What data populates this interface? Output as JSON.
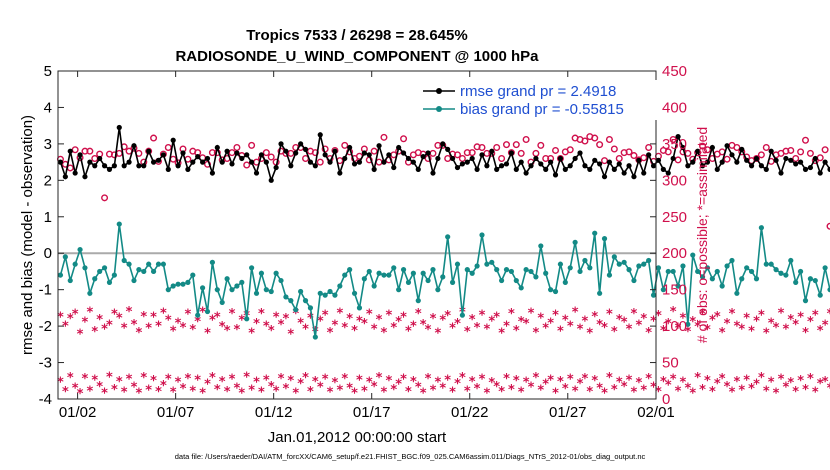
{
  "chart_data": {
    "type": "line",
    "title": "Tropics 7533 / 26298 = 28.645%",
    "subtitle": "RADIOSONDE_U_WIND_COMPONENT @ 1000 hPa",
    "xlabel": "Jan.01,2012 00:00:00 start",
    "ylabel": "rmse and bias (model - observation)",
    "y2label": "# of obs: o=possible; *=assimilated",
    "xlim": [
      0.5,
      31.0
    ],
    "ylim": [
      -4,
      5
    ],
    "y2lim": [
      0,
      450
    ],
    "xticks": [
      {
        "value": 1.5,
        "label": "01/02"
      },
      {
        "value": 6.5,
        "label": "01/07"
      },
      {
        "value": 11.5,
        "label": "01/12"
      },
      {
        "value": 16.5,
        "label": "01/17"
      },
      {
        "value": 21.5,
        "label": "01/22"
      },
      {
        "value": 26.5,
        "label": "01/27"
      },
      {
        "value": 31.0,
        "label": "02/01"
      }
    ],
    "yticks": [
      5,
      4,
      3,
      2,
      1,
      0,
      -1,
      -2,
      -3,
      -4
    ],
    "y2ticks": [
      450,
      400,
      350,
      300,
      250,
      200,
      150,
      100,
      50,
      0
    ],
    "legend": [
      {
        "name": "rmse grand pr = 2.4918",
        "color": "#000000"
      },
      {
        "name": "bias grand pr = -0.55815",
        "color": "#138a86"
      }
    ],
    "x_start": 0.625,
    "x_step": 0.25,
    "series": [
      {
        "name": "rmse",
        "color": "#000000",
        "values": [
          2.5,
          2.1,
          2.8,
          2.2,
          2.7,
          2.1,
          2.5,
          2.4,
          2.6,
          2.4,
          2.3,
          2.4,
          3.45,
          2.4,
          2.5,
          2.95,
          2.4,
          2.4,
          2.8,
          2.5,
          2.55,
          2.7,
          2.3,
          3.1,
          2.4,
          2.75,
          2.3,
          2.5,
          2.65,
          2.5,
          2.6,
          2.2,
          2.9,
          2.5,
          2.8,
          2.45,
          2.75,
          2.6,
          2.7,
          2.5,
          2.2,
          2.7,
          2.5,
          2.0,
          2.35,
          3.0,
          2.8,
          2.4,
          2.75,
          3.0,
          2.85,
          2.5,
          2.4,
          3.25,
          2.7,
          2.5,
          2.8,
          2.2,
          2.6,
          2.9,
          2.45,
          2.5,
          2.75,
          2.7,
          2.3,
          2.95,
          2.5,
          2.7,
          2.35,
          2.9,
          2.75,
          2.6,
          2.5,
          2.3,
          2.65,
          2.75,
          2.2,
          2.6,
          3.0,
          2.85,
          2.6,
          2.35,
          2.45,
          2.5,
          2.6,
          2.3,
          2.7,
          2.4,
          2.8,
          2.3,
          2.4,
          2.45,
          2.75,
          2.3,
          2.5,
          2.2,
          2.4,
          2.6,
          2.45,
          2.3,
          2.5,
          2.15,
          2.6,
          2.3,
          2.4,
          2.6,
          2.75,
          2.4,
          2.3,
          2.55,
          2.45,
          2.1,
          2.5,
          2.3,
          2.45,
          2.2,
          2.4,
          2.1,
          2.55,
          2.2,
          2.7,
          2.4,
          2.55,
          2.3,
          2.2,
          2.6,
          3.2,
          2.9,
          2.4,
          2.5,
          2.8,
          2.4,
          2.5,
          2.9,
          2.3,
          2.5,
          2.95,
          2.7,
          2.5,
          2.85,
          2.55,
          2.4,
          2.6,
          2.4,
          2.3,
          2.8,
          2.55,
          2.2,
          2.6,
          2.55,
          2.45,
          2.5,
          2.3,
          2.35,
          2.6,
          2.2,
          2.5,
          2.3,
          2.15,
          2.4,
          2.5,
          2.85,
          2.3,
          2.5,
          2.55,
          2.3,
          2.4,
          2.7,
          2.25,
          2.5,
          2.3,
          2.6,
          2.45,
          2.2,
          2.35,
          2.5,
          1.9,
          2.4,
          2.3,
          2.25,
          2.4,
          1.75,
          2.3,
          2.55,
          2.55,
          2.6,
          2.7,
          2.65,
          2.5,
          2.75,
          2.3,
          3.1
        ]
      },
      {
        "name": "bias",
        "color": "#138a86",
        "values": [
          -0.6,
          -0.1,
          -0.75,
          -0.3,
          0.1,
          -0.4,
          -1.1,
          -0.7,
          -0.5,
          -0.4,
          -0.8,
          -0.6,
          0.8,
          -0.2,
          -0.3,
          -0.75,
          -0.45,
          -0.5,
          -0.3,
          -0.5,
          -0.3,
          -0.3,
          -1.0,
          -0.9,
          -0.85,
          -0.85,
          -0.8,
          -0.6,
          -1.7,
          -0.95,
          -1.6,
          -0.25,
          -1.0,
          -1.35,
          -0.7,
          -1.0,
          -0.9,
          -0.8,
          -1.8,
          -0.4,
          -1.1,
          -0.55,
          -1.0,
          -1.05,
          -0.55,
          -0.75,
          -1.2,
          -1.3,
          -1.55,
          -1.05,
          -1.3,
          -1.5,
          -2.3,
          -1.1,
          -1.15,
          -1.05,
          -1.15,
          -0.9,
          -0.6,
          -0.45,
          -1.1,
          -1.5,
          -0.7,
          -0.5,
          -0.9,
          -0.55,
          -0.6,
          -0.6,
          -0.4,
          -1.0,
          -0.45,
          -0.8,
          -0.55,
          -1.3,
          -0.55,
          -0.75,
          -0.45,
          -1.0,
          -0.65,
          0.45,
          -0.8,
          -0.3,
          -1.7,
          -0.45,
          -0.55,
          -0.35,
          0.5,
          -0.3,
          -0.25,
          -0.45,
          -0.75,
          -0.45,
          -0.5,
          -0.75,
          -0.95,
          -0.45,
          -0.5,
          -0.65,
          0.2,
          -0.55,
          -1.0,
          -1.05,
          -0.3,
          -0.8,
          -0.4,
          0.3,
          -0.5,
          -0.2,
          -0.4,
          0.55,
          -1.1,
          0.4,
          -0.6,
          -0.1,
          -0.3,
          -0.25,
          -0.45,
          -0.75,
          -0.35,
          -0.3,
          -0.2,
          -1.15,
          -0.4,
          -1.0,
          -0.5,
          -0.5,
          -0.9,
          -0.35,
          -1.95,
          -0.05,
          -0.5,
          -0.65,
          -0.4,
          -0.7,
          -0.5,
          -0.9,
          -0.35,
          -0.2,
          -1.1,
          -0.7,
          -0.4,
          -0.5,
          -0.7,
          0.7,
          -0.3,
          -0.3,
          -0.45,
          -0.55,
          -0.6,
          -0.2,
          -0.8,
          -0.5,
          -1.3,
          -0.7,
          -0.75,
          -1.15,
          -0.4,
          -1.0,
          -0.7,
          -0.75,
          -0.75,
          -1.05,
          -0.9,
          -0.45,
          -0.45,
          -0.65,
          -0.5,
          -0.6,
          -0.5,
          0.3,
          -0.8,
          -0.9,
          -1.1,
          -0.75,
          -0.6,
          -1.6,
          -0.75,
          -1.5,
          -0.45,
          -0.55,
          -1.05,
          -1.7,
          -0.6,
          -0.65,
          -0.35,
          -0.55,
          -0.45,
          -0.05,
          -0.15,
          -0.05,
          -0.6,
          -0.15,
          -0.2,
          -0.25,
          -0.1,
          -0.55,
          -0.3,
          -0.05,
          -0.25,
          -0.6,
          -1.35,
          -0.2,
          -1.75
        ]
      },
      {
        "name": "# of obs: possible",
        "color": "#d0104c",
        "axis": "right",
        "values": [
          329,
          322,
          317,
          342,
          331,
          340,
          340,
          330,
          336,
          276,
          336,
          335,
          337,
          346,
          340,
          344,
          337,
          325,
          340,
          358,
          326,
          336,
          345,
          329,
          324,
          343,
          329,
          340,
          338,
          331,
          322,
          338,
          338,
          328,
          330,
          338,
          345,
          334,
          321,
          348,
          325,
          330,
          338,
          332,
          325,
          340,
          337,
          337,
          345,
          345,
          330,
          340,
          338,
          325,
          343,
          330,
          341,
          327,
          348,
          339,
          330,
          333,
          343,
          328,
          340,
          325,
          359,
          328,
          335,
          340,
          357,
          325,
          335,
          338,
          336,
          330,
          337,
          348,
          348,
          330,
          336,
          335,
          330,
          338,
          338,
          346,
          345,
          337,
          337,
          345,
          330,
          349,
          338,
          349,
          337,
          356,
          325,
          337,
          348,
          330,
          330,
          341,
          330,
          339,
          342,
          358,
          356,
          354,
          360,
          358,
          349,
          327,
          356,
          343,
          330,
          338,
          339,
          334,
          328,
          331,
          345,
          326,
          333,
          341,
          339,
          356,
          328,
          339,
          337,
          329,
          338,
          347,
          342,
          330,
          336,
          339,
          329,
          348,
          345,
          339,
          332,
          327,
          330,
          335,
          345,
          326,
          335,
          337,
          340,
          341,
          330,
          339,
          355,
          337,
          327,
          331,
          342,
          237,
          331,
          355,
          346,
          348,
          337,
          339,
          338,
          331,
          331,
          329,
          327,
          325,
          341,
          330,
          335,
          333,
          331,
          328,
          326,
          331,
          331,
          335,
          330,
          326,
          331,
          334,
          339,
          327,
          346
        ]
      },
      {
        "name": "# of obs: assimilated",
        "color": "#d0104c",
        "axis": "right",
        "values": [
          113,
          101,
          111,
          117,
          90,
          106,
          120,
          93,
          110,
          97,
          102,
          117,
          112,
          98,
          121,
          103,
          92,
          114,
          98,
          113,
          101,
          119,
          109,
          94,
          105,
          99,
          117,
          96,
          107,
          120,
          91,
          109,
          113,
          100,
          95,
          118,
          96,
          109,
          115,
          91,
          104,
          118,
          101,
          95,
          113,
          103,
          111,
          90,
          118,
          105,
          97,
          112,
          93,
          108,
          116,
          92,
          102,
          119,
          99,
          111,
          95,
          108,
          104,
          117,
          97,
          110,
          92,
          116,
          99,
          107,
          113,
          94,
          101,
          118,
          103,
          96,
          111,
          91,
          109,
          115,
          98,
          104,
          120,
          93,
          110,
          99,
          116,
          97,
          108,
          113,
          91,
          101,
          118,
          95,
          107,
          104,
          119,
          92,
          112,
          98,
          105,
          116,
          94,
          109,
          101,
          120,
          97,
          108,
          91,
          114,
          103,
          99,
          117,
          93,
          110,
          106,
          97,
          118,
          102,
          111,
          92,
          108,
          115,
          95,
          104,
          121,
          98,
          112,
          93,
          107,
          100,
          117,
          96,
          109,
          114,
          92,
          104,
          118,
          101,
          97,
          112,
          94,
          108,
          116,
          91,
          105,
          99,
          119,
          97,
          110,
          103,
          113,
          92,
          107,
          116,
          95,
          102,
          118,
          99,
          111,
          93,
          106,
          117,
          96,
          104,
          112,
          91,
          109,
          101,
          119,
          98,
          108,
          114,
          92,
          105,
          97,
          116,
          100,
          111,
          94,
          107,
          118,
          93,
          103,
          99,
          113,
          105
        ],
        "values_b": [
          24,
          11,
          30,
          16,
          8,
          29,
          12,
          27,
          18,
          9,
          31,
          14,
          25,
          10,
          28,
          17,
          9,
          30,
          13,
          26,
          11,
          19,
          28,
          10,
          24,
          15,
          29,
          12,
          27,
          9,
          21,
          30,
          14,
          25,
          11,
          28,
          16,
          9,
          31,
          13,
          24,
          10,
          27,
          18,
          12,
          29,
          15,
          26,
          9,
          22,
          30,
          11,
          25,
          17,
          28,
          10,
          23,
          13,
          29,
          16,
          9,
          27,
          12,
          24,
          18,
          30,
          10,
          26,
          14,
          21,
          28,
          11,
          25,
          17,
          9,
          29,
          13,
          24,
          16,
          27,
          10,
          22,
          30,
          12,
          25,
          15,
          28,
          9,
          23,
          18,
          11,
          29,
          14,
          26,
          10,
          24,
          17,
          30,
          13,
          21,
          27,
          9,
          25,
          15,
          28,
          12,
          22,
          29,
          11,
          26,
          16,
          9,
          30,
          14,
          24,
          18,
          27,
          10,
          23,
          13,
          29,
          17,
          11,
          25,
          20,
          28,
          12,
          24,
          16,
          9,
          30,
          14,
          26,
          11,
          22,
          29,
          18,
          10,
          25,
          13,
          27,
          15,
          21,
          30,
          12,
          24,
          9,
          28,
          17,
          23,
          11,
          26,
          14,
          29,
          10,
          22,
          25,
          16,
          28,
          12,
          24,
          9,
          20,
          30,
          15,
          27,
          11,
          23,
          18,
          29,
          13,
          25,
          10,
          21,
          28,
          16,
          24,
          12,
          30,
          14,
          26,
          9,
          22,
          19,
          27,
          11,
          0
        ]
      }
    ]
  },
  "footer": {
    "datafile": "data file: /Users/raeder/DAI/ATM_forcXX/CAM6_setup/f.e21.FHIST_BGC.f09_025.CAM6assim.011/Diags_NTrS_2012-01/obs_diag_output.nc"
  }
}
